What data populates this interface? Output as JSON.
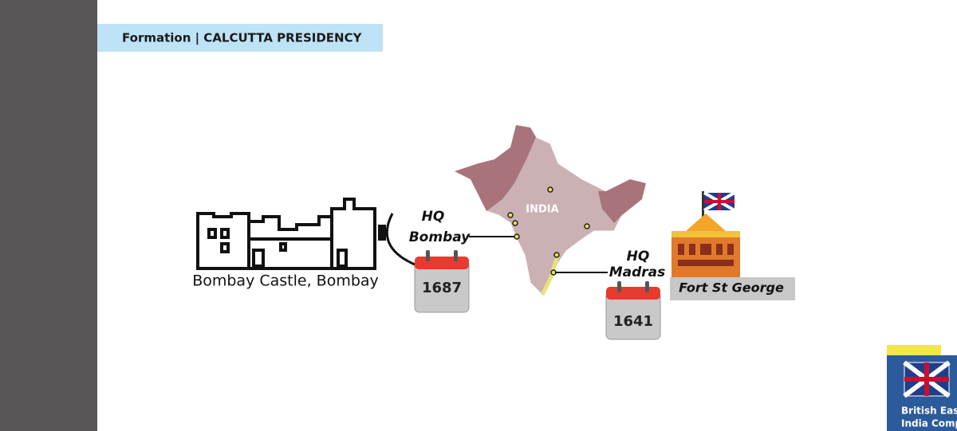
{
  "header": {
    "title": "Formation | CALCUTTA PRESIDENCY"
  },
  "left": {
    "caption": "Bombay Castle, Bombay",
    "hq_label": "HQ",
    "hq_city": "Bombay",
    "year": "1687"
  },
  "map": {
    "label": "INDIA"
  },
  "right": {
    "hq_label": "HQ",
    "hq_city": "Madras",
    "caption": "Fort St George",
    "year": "1641"
  },
  "corner": {
    "lines": [
      "British Eas",
      "India Compa"
    ]
  }
}
